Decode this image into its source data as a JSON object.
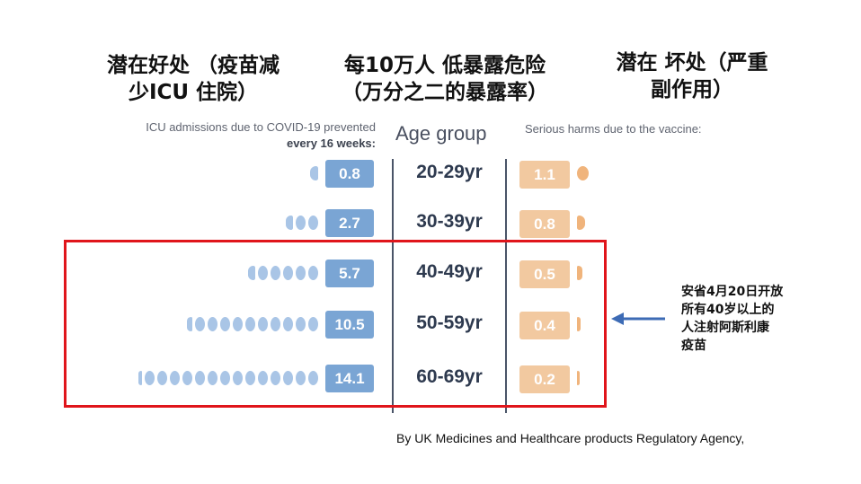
{
  "headers": {
    "benefit_line1": "潜在好处 （疫苗减",
    "benefit_line2": "少ICU 住院）",
    "risk_line1": "每10万人 低暴露危险",
    "risk_line2": "（万分之二的暴露率）",
    "harm_line1": "潜在 坏处（严重",
    "harm_line2": "副作用）"
  },
  "chart_data": {
    "type": "table",
    "left_label_line1": "ICU admissions due to COVID-19 prevented",
    "left_label_line2": "every 16 weeks:",
    "center_label": "Age group",
    "right_label": "Serious harms due to the vaccine:",
    "rows": [
      {
        "age": "20-29yr",
        "benefit": 0.8,
        "benefit_text": "0.8",
        "harm": 1.1,
        "harm_text": "1.1"
      },
      {
        "age": "30-39yr",
        "benefit": 2.7,
        "benefit_text": "2.7",
        "harm": 0.8,
        "harm_text": "0.8"
      },
      {
        "age": "40-49yr",
        "benefit": 5.7,
        "benefit_text": "5.7",
        "harm": 0.5,
        "harm_text": "0.5"
      },
      {
        "age": "50-59yr",
        "benefit": 10.5,
        "benefit_text": "10.5",
        "harm": 0.4,
        "harm_text": "0.4"
      },
      {
        "age": "60-69yr",
        "benefit": 14.1,
        "benefit_text": "14.1",
        "harm": 0.2,
        "harm_text": "0.2"
      }
    ],
    "colors": {
      "benefit_box": "#7aa5d4",
      "benefit_dot": "#a9c5e6",
      "harm_box": "#f2c9a0",
      "harm_dot": "#f0b47c",
      "highlight": "#e0151b",
      "arrow": "#3d6bb5"
    }
  },
  "annotation": {
    "lines": [
      "安省4月20日开放",
      "所有40岁以上的",
      "人注射阿斯利康",
      "疫苗"
    ]
  },
  "source": "By UK Medicines and Healthcare products Regulatory Agency,"
}
